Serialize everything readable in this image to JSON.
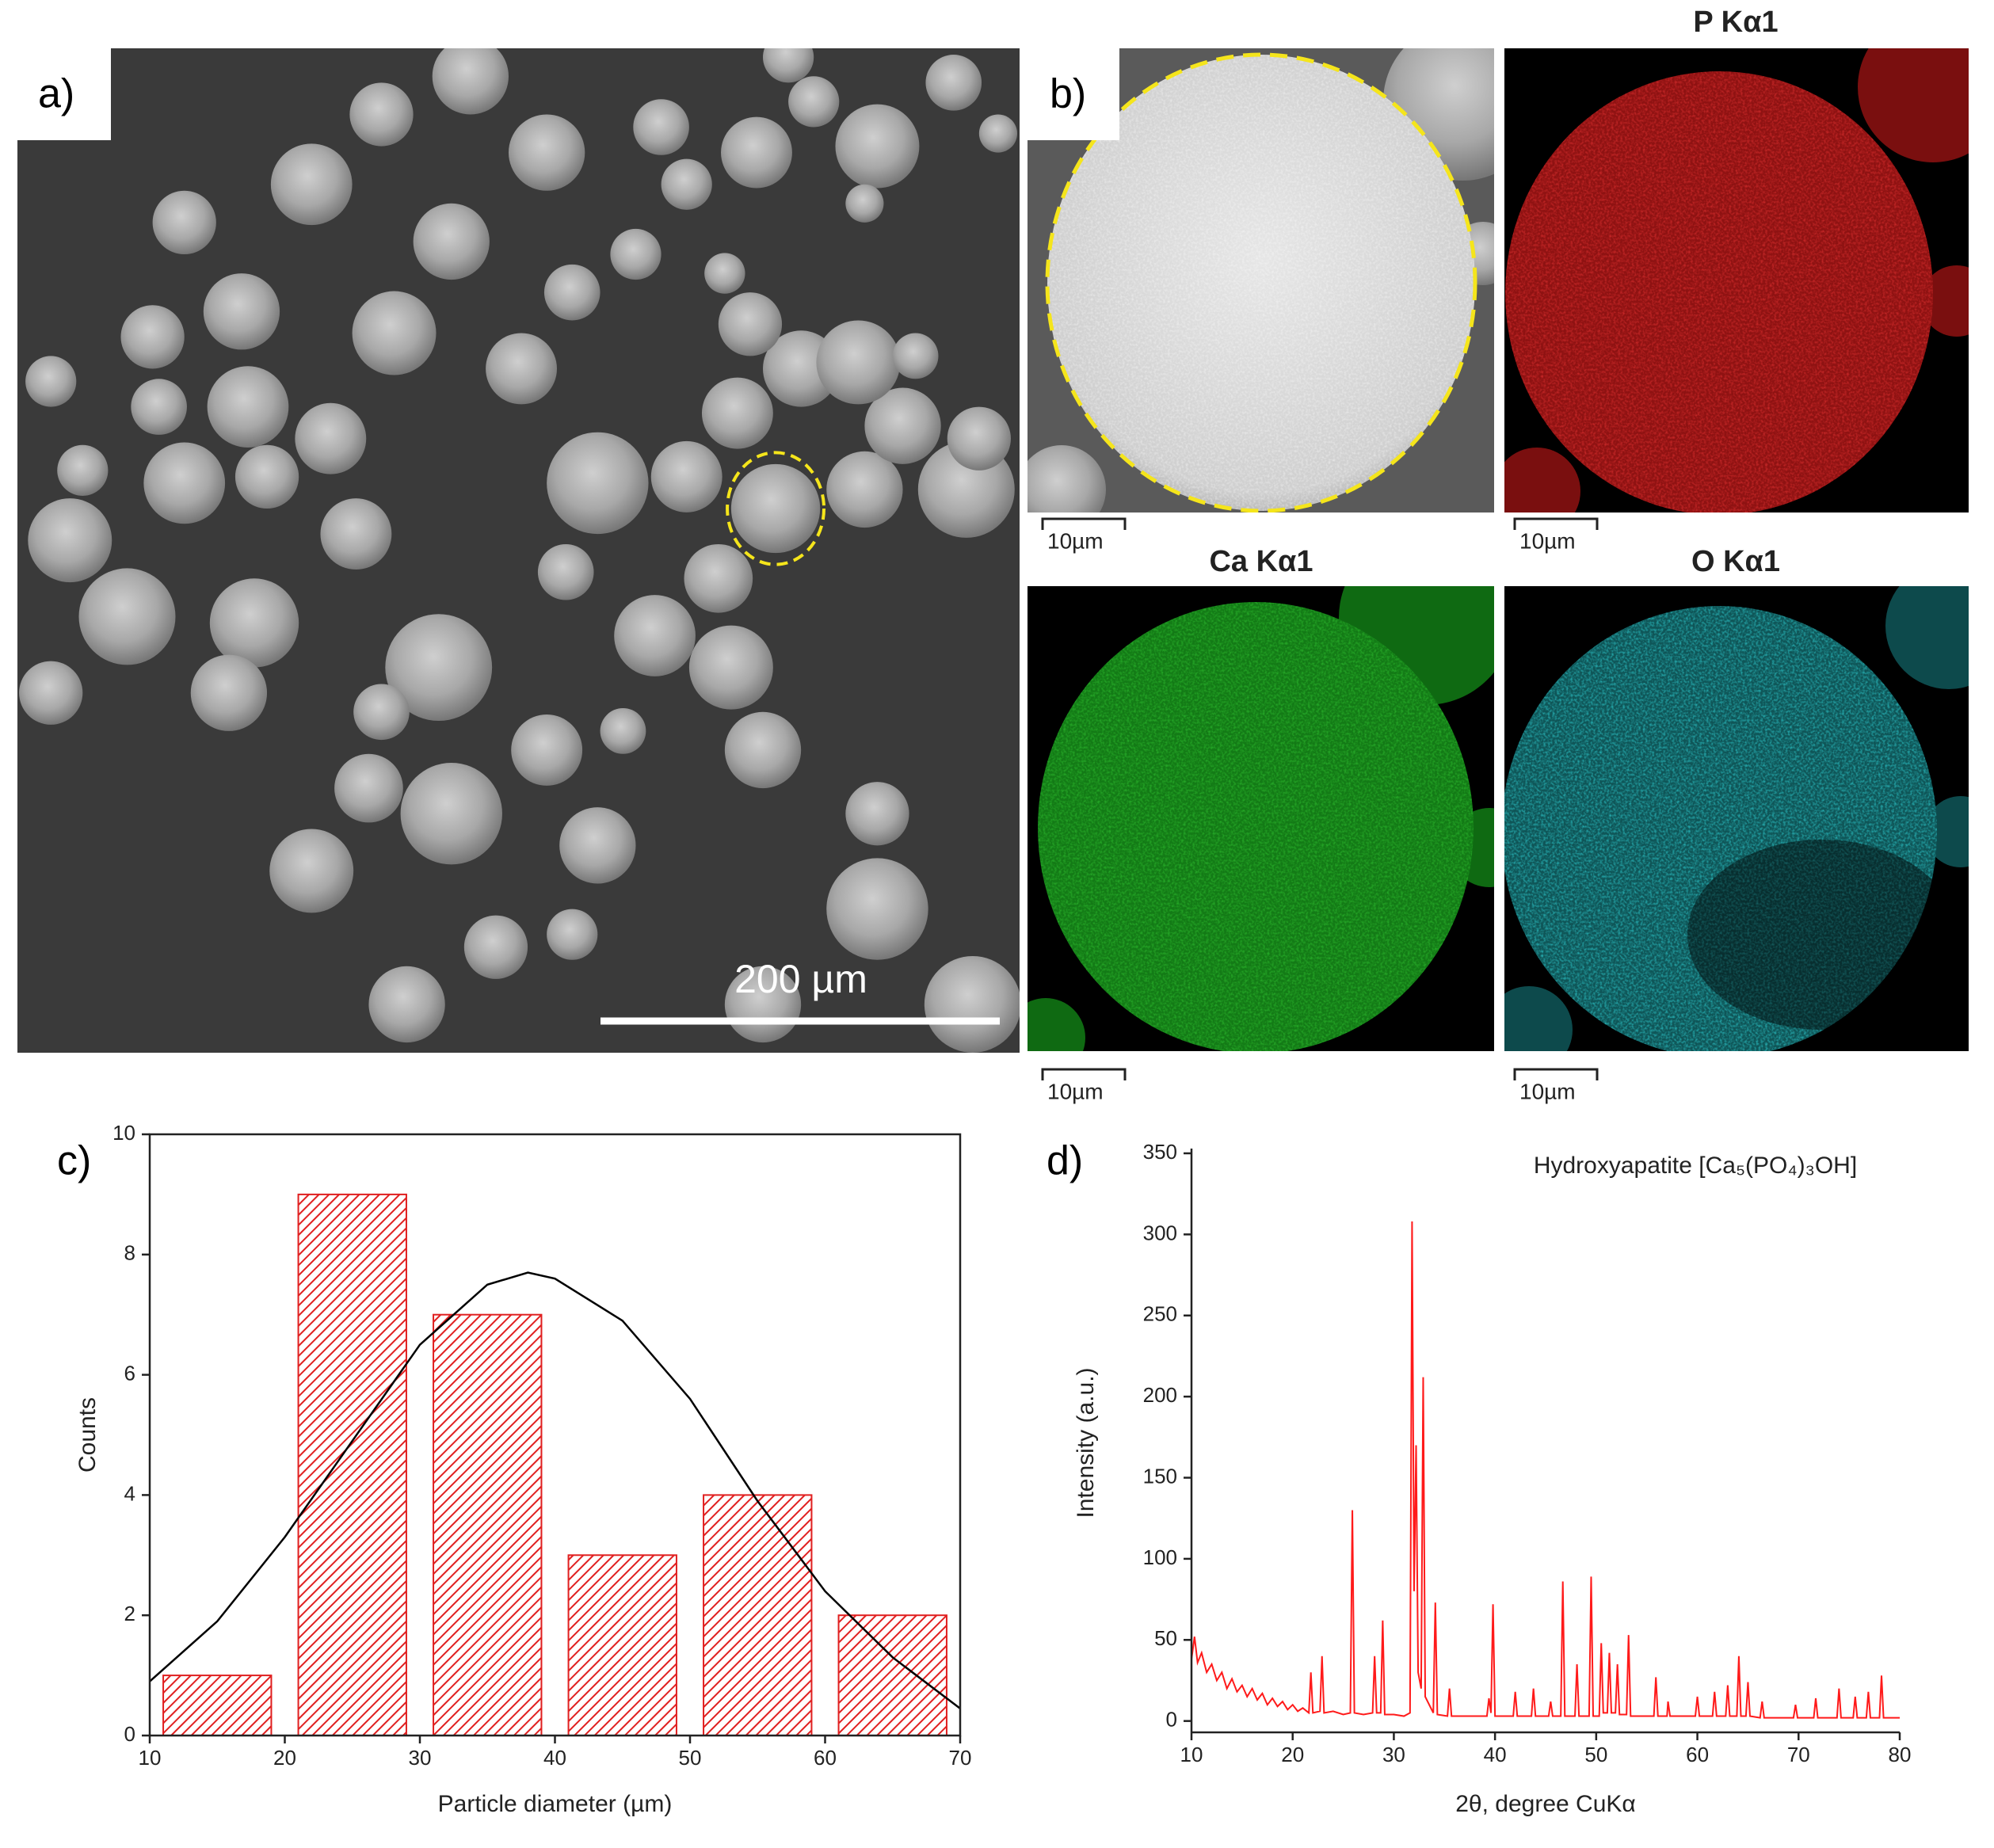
{
  "panels": {
    "a": {
      "label": "a)",
      "scale_bar": "200 µm"
    },
    "b": {
      "label": "b)",
      "maps": [
        "P Kα1",
        "Ca Kα1",
        "O Kα1"
      ],
      "scale_bars": [
        "10µm",
        "10µm",
        "10µm",
        "10µm"
      ]
    }
  },
  "chart_data": [
    {
      "type": "histogram",
      "label": "c)",
      "xlabel": "Particle diameter (µm)",
      "ylabel": "Counts",
      "bins": [
        10,
        20,
        30,
        40,
        50,
        60,
        70
      ],
      "values": [
        1,
        9,
        7,
        3,
        4,
        2
      ],
      "color": "#e02020",
      "fit": {
        "color": "#000000",
        "x": [
          10,
          15,
          20,
          25,
          30,
          35,
          38,
          40,
          45,
          50,
          55,
          60,
          65,
          70
        ],
        "values": [
          0.9,
          1.9,
          3.3,
          4.9,
          6.5,
          7.5,
          7.7,
          7.6,
          6.9,
          5.6,
          3.9,
          2.4,
          1.3,
          0.45
        ]
      },
      "xlim": [
        10,
        70
      ],
      "xticks": [
        10,
        20,
        30,
        40,
        50,
        60,
        70
      ],
      "ylim": [
        0,
        10
      ],
      "yticks": [
        0,
        2,
        4,
        6,
        8,
        10
      ],
      "frame": true
    },
    {
      "type": "line",
      "label": "d)",
      "xlabel": "2θ, degree CuKα",
      "ylabel": "Intensity (a.u.)",
      "annotation": "Hydroxyapatite [Ca₅(PO₄)₃OH]",
      "color": "#ff1a1a",
      "x": [
        10,
        10.3,
        10.6,
        11,
        11.5,
        12,
        12.5,
        13,
        13.5,
        14,
        14.5,
        15,
        15.5,
        16,
        16.5,
        17,
        17.5,
        18,
        18.5,
        19,
        19.5,
        20,
        20.5,
        21,
        21.6,
        21.8,
        22,
        22.7,
        22.9,
        23.1,
        24,
        25,
        25.7,
        25.9,
        26.1,
        27,
        27.9,
        28.1,
        28.3,
        28.7,
        28.9,
        29.1,
        30,
        31,
        31.6,
        31.8,
        32,
        32.2,
        32.4,
        32.7,
        32.9,
        33.1,
        33.9,
        34.1,
        34.3,
        35.3,
        35.5,
        35.7,
        37,
        39.2,
        39.4,
        39.6,
        39.8,
        40,
        41.8,
        42,
        42.2,
        43.6,
        43.8,
        44,
        45.3,
        45.5,
        45.7,
        46.5,
        46.7,
        46.9,
        47.9,
        48.1,
        48.3,
        49.3,
        49.5,
        49.7,
        50.3,
        50.5,
        50.7,
        51.1,
        51.3,
        51.5,
        51.9,
        52.1,
        52.3,
        53,
        53.2,
        53.4,
        55.7,
        55.9,
        56.1,
        57,
        57.1,
        57.3,
        59.8,
        60,
        60.2,
        61.5,
        61.7,
        61.9,
        62.8,
        63,
        63.2,
        63.9,
        64.1,
        64.3,
        64.8,
        65,
        65.2,
        66.2,
        66.4,
        66.6,
        69.5,
        69.7,
        69.9,
        71.5,
        71.7,
        71.9,
        73.8,
        74,
        74.2,
        75.4,
        75.6,
        75.8,
        76.7,
        76.9,
        77.1,
        78,
        78.2,
        78.4,
        80
      ],
      "values": [
        38,
        52,
        36,
        42,
        30,
        35,
        25,
        30,
        20,
        26,
        18,
        22,
        15,
        20,
        13,
        17,
        10,
        14,
        9,
        12,
        7,
        10,
        6,
        8,
        5,
        30,
        5,
        6,
        40,
        5,
        6,
        4,
        5,
        130,
        5,
        4,
        5,
        40,
        5,
        5,
        62,
        4,
        4,
        3,
        5,
        308,
        80,
        170,
        30,
        20,
        212,
        15,
        5,
        73,
        4,
        3,
        20,
        3,
        3,
        3,
        14,
        5,
        72,
        3,
        3,
        18,
        3,
        3,
        20,
        3,
        3,
        12,
        3,
        3,
        86,
        3,
        3,
        35,
        3,
        3,
        89,
        3,
        3,
        48,
        5,
        5,
        42,
        5,
        5,
        35,
        4,
        4,
        53,
        3,
        3,
        27,
        3,
        3,
        12,
        3,
        3,
        15,
        3,
        3,
        18,
        3,
        3,
        22,
        3,
        3,
        40,
        3,
        3,
        24,
        3,
        2,
        12,
        2,
        2,
        10,
        2,
        2,
        14,
        2,
        2,
        20,
        2,
        2,
        15,
        2,
        2,
        18,
        2,
        2,
        28,
        2,
        2
      ],
      "xlim": [
        10,
        80
      ],
      "xticks": [
        10,
        20,
        30,
        40,
        50,
        60,
        70,
        80
      ],
      "ylim": [
        -7,
        350
      ],
      "yticks": [
        0,
        50,
        100,
        150,
        200,
        250,
        300,
        350
      ],
      "frame": false
    }
  ]
}
